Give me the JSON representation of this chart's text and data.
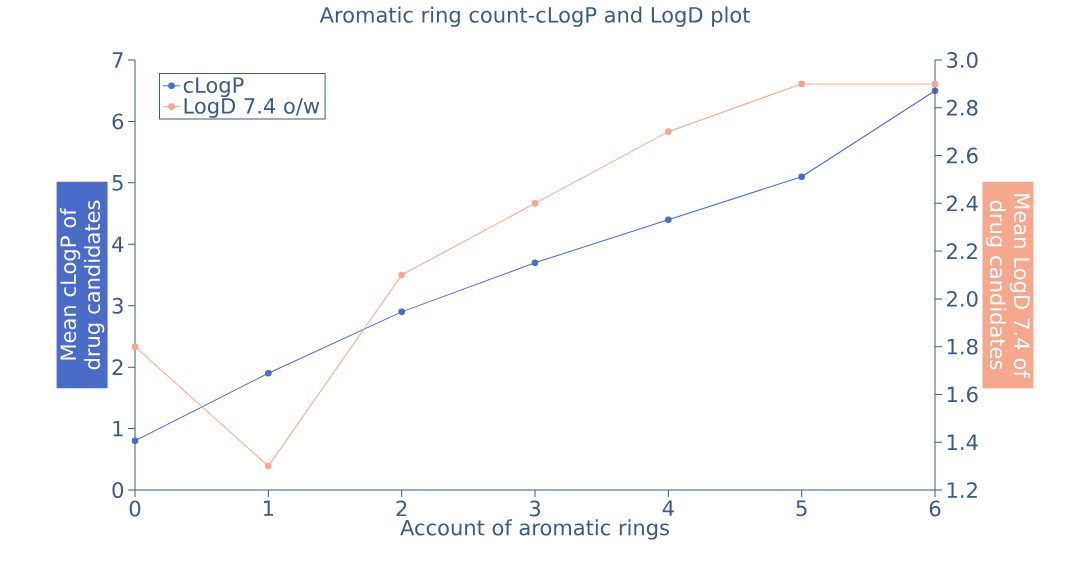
{
  "chart_data": {
    "type": "line",
    "title": "Aromatic ring count-cLogP and LogD plot",
    "xlabel": "Account of aromatic rings",
    "ylabel": "Mean cLogP of drug candidates",
    "y2label": "Mean LogD 7.4 of drug candidates",
    "x": [
      0,
      1,
      2,
      3,
      4,
      5,
      6
    ],
    "xlim": [
      0,
      6
    ],
    "xticks": [
      0,
      1,
      2,
      3,
      4,
      5,
      6
    ],
    "ylim": [
      0,
      7
    ],
    "yticks": [
      0,
      1,
      2,
      3,
      4,
      5,
      6,
      7
    ],
    "y2lim": [
      1.2,
      3.0
    ],
    "y2ticks": [
      1.2,
      1.4,
      1.6,
      1.8,
      {
        "value": 2,
        "label": "2.0"
      },
      2.2,
      2.4,
      2.6,
      2.8,
      {
        "value": 3,
        "label": "3.0"
      }
    ],
    "series": [
      {
        "name": "cLogP",
        "color": "#4a6cc8",
        "values": [
          0.8,
          1.9,
          2.9,
          3.7,
          4.4,
          5.1,
          6.5
        ]
      },
      {
        "name": "LogD 7.4 o/w",
        "color": "#f5a88e",
        "axis": "y2",
        "values": [
          1.8,
          1.3,
          2.1,
          2.4,
          2.7,
          2.9,
          2.9
        ]
      }
    ],
    "legend": "top left",
    "marker": "circle",
    "line_style": "solid"
  }
}
